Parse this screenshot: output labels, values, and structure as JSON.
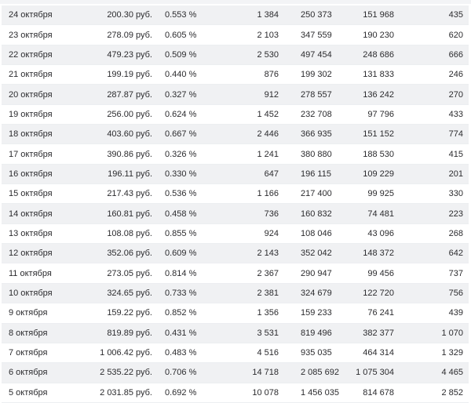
{
  "page": {
    "background_color": "#ffffff",
    "stripe_color": "#f0f1f3",
    "row_line_color": "#eceef1",
    "text_color": "#2b2b2e",
    "top_strip_color": "#f3f4f6"
  },
  "table": {
    "rows": [
      {
        "cells": [
          "24 октября",
          "200.30 руб.",
          "0.553 %",
          "1 384",
          "250 373",
          "151 968",
          "435"
        ]
      },
      {
        "cells": [
          "23 октября",
          "278.09 руб.",
          "0.605 %",
          "2 103",
          "347 559",
          "190 230",
          "620"
        ]
      },
      {
        "cells": [
          "22 октября",
          "479.23 руб.",
          "0.509 %",
          "2 530",
          "497 454",
          "248 686",
          "666"
        ]
      },
      {
        "cells": [
          "21 октября",
          "199.19 руб.",
          "0.440 %",
          "876",
          "199 302",
          "131 833",
          "246"
        ]
      },
      {
        "cells": [
          "20 октября",
          "287.87 руб.",
          "0.327 %",
          "912",
          "278 557",
          "136 242",
          "270"
        ]
      },
      {
        "cells": [
          "19 октября",
          "256.00 руб.",
          "0.624 %",
          "1 452",
          "232 708",
          "97 796",
          "433"
        ]
      },
      {
        "cells": [
          "18 октября",
          "403.60 руб.",
          "0.667 %",
          "2 446",
          "366 935",
          "151 152",
          "774"
        ]
      },
      {
        "cells": [
          "17 октября",
          "390.86 руб.",
          "0.326 %",
          "1 241",
          "380 880",
          "188 530",
          "415"
        ]
      },
      {
        "cells": [
          "16 октября",
          "196.11 руб.",
          "0.330 %",
          "647",
          "196 115",
          "109 229",
          "201"
        ]
      },
      {
        "cells": [
          "15 октября",
          "217.43 руб.",
          "0.536 %",
          "1 166",
          "217 400",
          "99 925",
          "330"
        ]
      },
      {
        "cells": [
          "14 октября",
          "160.81 руб.",
          "0.458 %",
          "736",
          "160 832",
          "74 481",
          "223"
        ]
      },
      {
        "cells": [
          "13 октября",
          "108.08 руб.",
          "0.855 %",
          "924",
          "108 046",
          "43 096",
          "268"
        ]
      },
      {
        "cells": [
          "12 октября",
          "352.06 руб.",
          "0.609 %",
          "2 143",
          "352 042",
          "148 372",
          "642"
        ]
      },
      {
        "cells": [
          "11 октября",
          "273.05 руб.",
          "0.814 %",
          "2 367",
          "290 947",
          "99 456",
          "737"
        ]
      },
      {
        "cells": [
          "10 октября",
          "324.65 руб.",
          "0.733 %",
          "2 381",
          "324 679",
          "122 720",
          "756"
        ]
      },
      {
        "cells": [
          "9 октября",
          "159.22 руб.",
          "0.852 %",
          "1 356",
          "159 233",
          "76 241",
          "439"
        ]
      },
      {
        "cells": [
          "8 октября",
          "819.89 руб.",
          "0.431 %",
          "3 531",
          "819 496",
          "382 377",
          "1 070"
        ]
      },
      {
        "cells": [
          "7 октября",
          "1 006.42 руб.",
          "0.483 %",
          "4 516",
          "935 035",
          "464 314",
          "1 329"
        ]
      },
      {
        "cells": [
          "6 октября",
          "2 535.22 руб.",
          "0.706 %",
          "14 718",
          "2 085 692",
          "1 075 304",
          "4 465"
        ]
      },
      {
        "cells": [
          "5 октября",
          "2 031.85 руб.",
          "0.692 %",
          "10 078",
          "1 456 035",
          "814 678",
          "2 852"
        ]
      }
    ]
  }
}
